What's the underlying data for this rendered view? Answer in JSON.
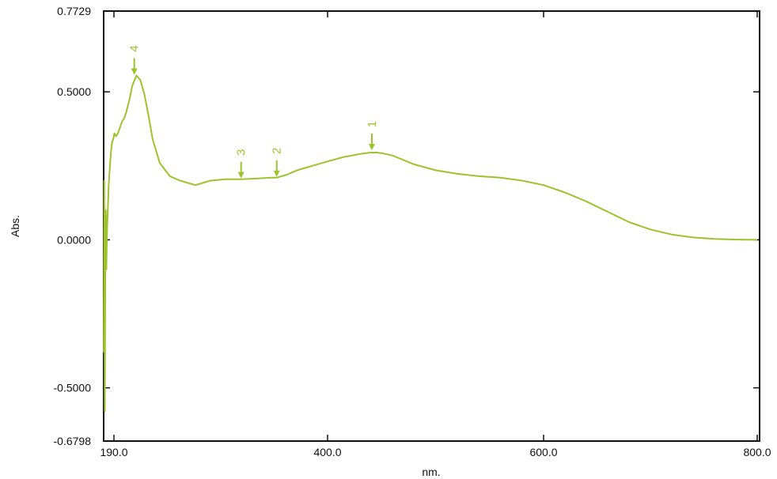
{
  "chart_data": {
    "type": "line",
    "title": "",
    "xlabel": "nm.",
    "ylabel": "Abs.",
    "xlim": [
      190.0,
      800.0
    ],
    "ylim": [
      -0.6798,
      0.7729
    ],
    "x_ticks": [
      {
        "value": 190.0,
        "label": "190.0"
      },
      {
        "value": 400.0,
        "label": "400.0"
      },
      {
        "value": 600.0,
        "label": "600.0"
      },
      {
        "value": 800.0,
        "label": "800.0"
      }
    ],
    "y_ticks": [
      {
        "value": 0.7729,
        "label": "0.7729"
      },
      {
        "value": 0.5,
        "label": "0.5000"
      },
      {
        "value": 0.0,
        "label": "0.0000"
      },
      {
        "value": -0.5,
        "label": "-0.5000"
      },
      {
        "value": -0.6798,
        "label": "-0.6798"
      }
    ],
    "grid": false,
    "series_color": "#9dc32b",
    "series": [
      {
        "x": [
          180,
          180.5,
          181,
          181.5,
          182,
          182.5,
          183,
          183.6,
          184.2,
          184.8,
          185.5,
          186.3,
          187.2,
          188.2,
          189.3,
          190.5,
          192,
          194,
          196,
          198,
          200,
          202,
          205,
          208,
          212,
          216,
          220,
          224,
          228,
          235,
          245,
          255,
          270,
          285,
          300,
          315,
          330,
          345,
          350,
          360,
          370,
          385,
          400,
          415,
          430,
          440,
          445,
          450,
          460,
          470,
          480,
          500,
          520,
          540,
          560,
          580,
          600,
          620,
          640,
          660,
          680,
          700,
          720,
          740,
          760,
          780,
          800
        ],
        "y": [
          -0.38,
          0.2,
          -0.58,
          -0.12,
          0.1,
          -0.1,
          0.0,
          0.07,
          0.12,
          0.18,
          0.22,
          0.26,
          0.3,
          0.33,
          0.34,
          0.36,
          0.35,
          0.36,
          0.38,
          0.4,
          0.41,
          0.43,
          0.47,
          0.52,
          0.555,
          0.54,
          0.49,
          0.42,
          0.34,
          0.26,
          0.215,
          0.2,
          0.185,
          0.2,
          0.205,
          0.205,
          0.207,
          0.21,
          0.21,
          0.22,
          0.235,
          0.25,
          0.265,
          0.28,
          0.29,
          0.295,
          0.295,
          0.293,
          0.285,
          0.27,
          0.255,
          0.235,
          0.223,
          0.215,
          0.21,
          0.2,
          0.185,
          0.16,
          0.13,
          0.095,
          0.06,
          0.035,
          0.018,
          0.008,
          0.003,
          0.001,
          0.0
        ]
      }
    ],
    "annotations": [
      {
        "label": "1",
        "x": 441,
        "y": 0.3
      },
      {
        "label": "2",
        "x": 350,
        "y": 0.21
      },
      {
        "label": "3",
        "x": 315,
        "y": 0.205
      },
      {
        "label": "4",
        "x": 210,
        "y": 0.555
      }
    ]
  }
}
